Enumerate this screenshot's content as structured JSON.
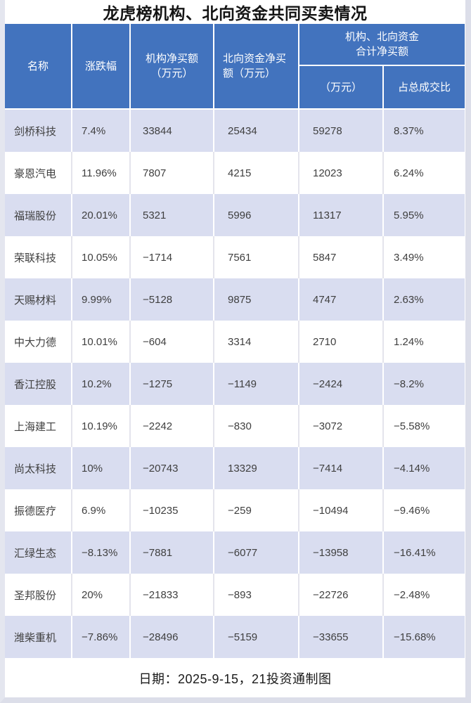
{
  "title": "龙虎榜机构、北向资金共同买卖情况",
  "footer": {
    "note": "日期：2025-9-15，21投资通制图"
  },
  "colors": {
    "header_bg": "#4273BE",
    "header_text": "#FFFFFF",
    "row_alt_bg": "#D9DDF0",
    "frame": "#DCDEE9",
    "frame_left": "#E4E6EF",
    "data_text": "#3F3F3F",
    "divider_light": "#E4E4EC"
  },
  "table": {
    "headers": {
      "name": "名称",
      "change": "涨跌幅",
      "inst": "机构净买额\n（万元）",
      "north": "北向资金净买\n额（万元）",
      "combined": "机构、北向资金\n合计净买额",
      "combined_amount": "（万元）",
      "combined_ratio": "占总成交比"
    },
    "rows": [
      {
        "name": "剑桥科技",
        "change": "7.4%",
        "inst": "33844",
        "north": "25434",
        "total": "59278",
        "ratio": "8.37%"
      },
      {
        "name": "豪恩汽电",
        "change": "11.96%",
        "inst": "7807",
        "north": "4215",
        "total": "12023",
        "ratio": "6.24%"
      },
      {
        "name": "福瑞股份",
        "change": "20.01%",
        "inst": "5321",
        "north": "5996",
        "total": "11317",
        "ratio": "5.95%"
      },
      {
        "name": "荣联科技",
        "change": "10.05%",
        "inst": "−1714",
        "north": "7561",
        "total": "5847",
        "ratio": "3.49%"
      },
      {
        "name": "天赐材料",
        "change": "9.99%",
        "inst": "−5128",
        "north": "9875",
        "total": "4747",
        "ratio": "2.63%"
      },
      {
        "name": "中大力德",
        "change": "10.01%",
        "inst": "−604",
        "north": "3314",
        "total": "2710",
        "ratio": "1.24%"
      },
      {
        "name": "香江控股",
        "change": "10.2%",
        "inst": "−1275",
        "north": "−1149",
        "total": "−2424",
        "ratio": "−8.2%"
      },
      {
        "name": "上海建工",
        "change": "10.19%",
        "inst": "−2242",
        "north": "−830",
        "total": "−3072",
        "ratio": "−5.58%"
      },
      {
        "name": "尚太科技",
        "change": "10%",
        "inst": "−20743",
        "north": "13329",
        "total": "−7414",
        "ratio": "−4.14%"
      },
      {
        "name": "振德医疗",
        "change": "6.9%",
        "inst": "−10235",
        "north": "−259",
        "total": "−10494",
        "ratio": "−9.46%"
      },
      {
        "name": "汇绿生态",
        "change": "−8.13%",
        "inst": "−7881",
        "north": "−6077",
        "total": "−13958",
        "ratio": "−16.41%"
      },
      {
        "name": "圣邦股份",
        "change": "20%",
        "inst": "−21833",
        "north": "−893",
        "total": "−22726",
        "ratio": "−2.48%"
      },
      {
        "name": "潍柴重机",
        "change": "−7.86%",
        "inst": "−28496",
        "north": "−5159",
        "total": "−33655",
        "ratio": "−15.68%"
      }
    ]
  },
  "chart_data": {
    "type": "table",
    "title": "龙虎榜机构、北向资金共同买卖情况",
    "columns": [
      "名称",
      "涨跌幅",
      "机构净买额（万元）",
      "北向资金净买额（万元）",
      "机构、北向资金合计净买额（万元）",
      "机构、北向资金合计净买额占总成交比"
    ],
    "rows": [
      [
        "剑桥科技",
        "7.4%",
        33844,
        25434,
        59278,
        "8.37%"
      ],
      [
        "豪恩汽电",
        "11.96%",
        7807,
        4215,
        12023,
        "6.24%"
      ],
      [
        "福瑞股份",
        "20.01%",
        5321,
        5996,
        11317,
        "5.95%"
      ],
      [
        "荣联科技",
        "10.05%",
        -1714,
        7561,
        5847,
        "3.49%"
      ],
      [
        "天赐材料",
        "9.99%",
        -5128,
        9875,
        4747,
        "2.63%"
      ],
      [
        "中大力德",
        "10.01%",
        -604,
        3314,
        2710,
        "1.24%"
      ],
      [
        "香江控股",
        "10.2%",
        -1275,
        -1149,
        -2424,
        "-8.2%"
      ],
      [
        "上海建工",
        "10.19%",
        -2242,
        -830,
        -3072,
        "-5.58%"
      ],
      [
        "尚太科技",
        "10%",
        -20743,
        13329,
        -7414,
        "-4.14%"
      ],
      [
        "振德医疗",
        "6.9%",
        -10235,
        -259,
        -10494,
        "-9.46%"
      ],
      [
        "汇绿生态",
        "-8.13%",
        -7881,
        -6077,
        -13958,
        "-16.41%"
      ],
      [
        "圣邦股份",
        "20%",
        -21833,
        -893,
        -22726,
        "-2.48%"
      ],
      [
        "潍柴重机",
        "-7.86%",
        -28496,
        -5159,
        -33655,
        "-15.68%"
      ]
    ],
    "footnote": "日期：2025-9-15，21投资通制图"
  }
}
